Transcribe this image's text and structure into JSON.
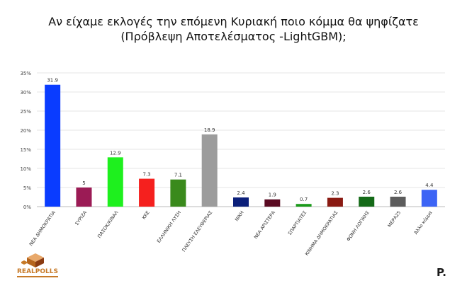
{
  "chart_data": {
    "type": "bar",
    "title_line1": "Αν είχαμε εκλογές την επόμενη Κυριακή ποιο κόμμα θα ψηφίζατε",
    "title_line2": "(Πρόβλεψη Αποτελέσματος -LightGBM);",
    "categories": [
      "ΝΕΑ ΔΗΜΟΚΡΑΤΙΑ",
      "ΣΥΡΙΖΑ",
      "ΠΑΣΟΚ/ΚΙΝΑΛ",
      "ΚΚΕ",
      "ΕΛΛΗΝΙΚΗ ΛΥΣΗ",
      "ΠΛΕΥΣΗ ΕΛΕΥΘΕΡΙΑΣ",
      "ΝΙΚΗ",
      "ΝΕΑ ΑΡΙΣΤΕΡΑ",
      "ΣΠΑΡΤΙΑΤΕΣ",
      "ΚΙΝΗΜΑ ΔΗΜΟΚΡΑΤΙΑΣ",
      "ΦΩΝΗ ΛΟΓΙΚΗΣ",
      "ΜΕΡΑ25",
      "Άλλο κόμμα"
    ],
    "values": [
      31.9,
      5,
      12.9,
      7.3,
      7.1,
      18.9,
      2.4,
      1.9,
      0.7,
      2.3,
      2.6,
      2.6,
      4.4
    ],
    "value_labels": [
      "31.9",
      "5",
      "12.9",
      "7.3",
      "7.1",
      "18.9",
      "2.4",
      "1.9",
      "0.7",
      "2.3",
      "2.6",
      "2.6",
      "4.4"
    ],
    "colors": [
      "#0a3cff",
      "#9b1b55",
      "#1ef01e",
      "#f5201e",
      "#3a8a1c",
      "#9c9c9c",
      "#0b1f7a",
      "#5a0a22",
      "#1a9a1a",
      "#8a1a12",
      "#146a18",
      "#5c5c5c",
      "#3c64f5"
    ],
    "ylim": [
      0,
      35
    ],
    "yticks": [
      "0%",
      "5%",
      "10%",
      "15%",
      "20%",
      "25%",
      "30%",
      "35%"
    ],
    "grid": true
  },
  "branding": {
    "left_logo_text": "REALPOLLS",
    "right_logo_text": "P."
  }
}
